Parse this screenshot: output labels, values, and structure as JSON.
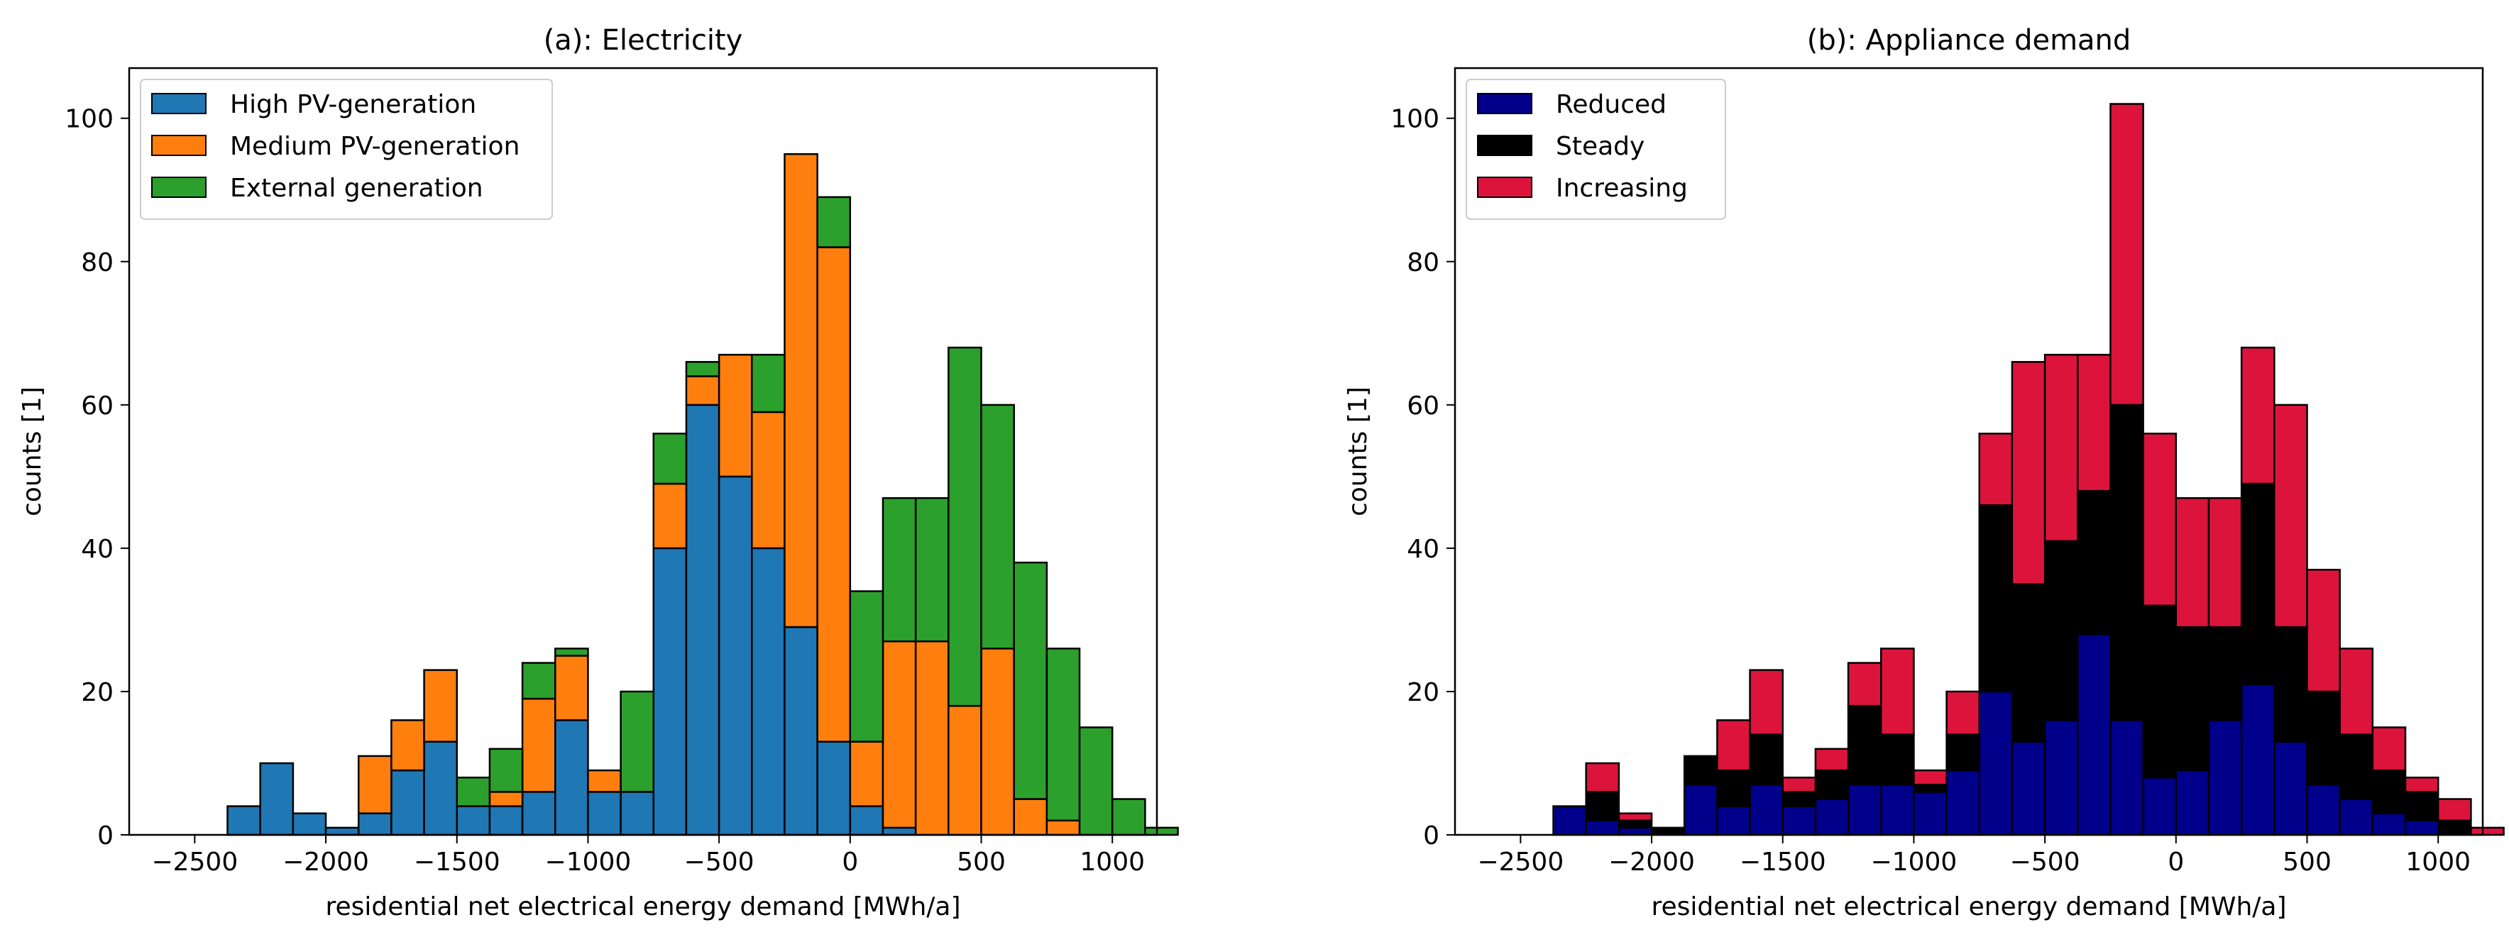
{
  "chart_data": [
    {
      "type": "bar",
      "stacked": true,
      "title": "(a): Electricity",
      "xlabel": "residential net electrical energy demand [MWh/a]",
      "ylabel": "counts [1]",
      "xlim": [
        -2750,
        1170
      ],
      "ylim": [
        0,
        107
      ],
      "xticks": [
        -2500,
        -2000,
        -1500,
        -1000,
        -500,
        0,
        500,
        1000
      ],
      "xtick_labels": [
        "−2500",
        "−2000",
        "−1500",
        "−1000",
        "−500",
        "0",
        "500",
        "1000"
      ],
      "yticks": [
        0,
        20,
        40,
        60,
        80,
        100
      ],
      "ytick_labels": [
        "0",
        "20",
        "40",
        "60",
        "80",
        "100"
      ],
      "bin_start": -2500,
      "bin_width": 125,
      "legend_position": "top-left",
      "series": [
        {
          "name": "High PV-generation",
          "color": "#1f77b4",
          "values": [
            0,
            4,
            10,
            3,
            1,
            3,
            9,
            13,
            4,
            4,
            6,
            16,
            6,
            6,
            40,
            60,
            50,
            40,
            29,
            13,
            4,
            1,
            0,
            0,
            0,
            0,
            0,
            0,
            0,
            0
          ]
        },
        {
          "name": "Medium PV-generation",
          "color": "#ff7f0e",
          "values": [
            0,
            0,
            0,
            0,
            0,
            8,
            7,
            10,
            0,
            2,
            13,
            9,
            3,
            0,
            9,
            4,
            17,
            19,
            66,
            69,
            9,
            26,
            27,
            18,
            26,
            5,
            2,
            0,
            0,
            0
          ]
        },
        {
          "name": "External generation",
          "color": "#2ca02c",
          "values": [
            0,
            0,
            0,
            0,
            0,
            0,
            0,
            0,
            4,
            6,
            5,
            1,
            0,
            14,
            7,
            2,
            0,
            8,
            0,
            7,
            21,
            20,
            20,
            50,
            34,
            33,
            24,
            15,
            5,
            1
          ]
        }
      ]
    },
    {
      "type": "bar",
      "stacked": true,
      "title": "(b): Appliance demand",
      "xlabel": "residential net electrical energy demand [MWh/a]",
      "ylabel": "counts [1]",
      "xlim": [
        -2750,
        1170
      ],
      "ylim": [
        0,
        107
      ],
      "xticks": [
        -2500,
        -2000,
        -1500,
        -1000,
        -500,
        0,
        500,
        1000
      ],
      "xtick_labels": [
        "−2500",
        "−2000",
        "−1500",
        "−1000",
        "−500",
        "0",
        "500",
        "1000"
      ],
      "yticks": [
        0,
        20,
        40,
        60,
        80,
        100
      ],
      "ytick_labels": [
        "0",
        "20",
        "40",
        "60",
        "80",
        "100"
      ],
      "bin_start": -2500,
      "bin_width": 125,
      "legend_position": "top-left",
      "series": [
        {
          "name": "Reduced",
          "color": "#00008b",
          "values": [
            0,
            4,
            2,
            1,
            0,
            7,
            4,
            7,
            4,
            5,
            7,
            7,
            6,
            9,
            20,
            13,
            16,
            28,
            16,
            8,
            9,
            16,
            21,
            13,
            7,
            5,
            3,
            2,
            0,
            0
          ]
        },
        {
          "name": "Steady",
          "color": "#000000",
          "values": [
            0,
            0,
            4,
            1,
            1,
            4,
            5,
            7,
            2,
            4,
            11,
            7,
            1,
            5,
            26,
            22,
            25,
            20,
            44,
            24,
            20,
            13,
            28,
            16,
            13,
            9,
            6,
            4,
            2,
            0
          ]
        },
        {
          "name": "Increasing",
          "color": "#dc143c",
          "values": [
            0,
            0,
            4,
            1,
            0,
            0,
            7,
            9,
            2,
            3,
            6,
            12,
            2,
            6,
            10,
            31,
            26,
            19,
            42,
            24,
            18,
            18,
            19,
            31,
            17,
            12,
            6,
            2,
            3,
            1
          ]
        }
      ]
    }
  ]
}
